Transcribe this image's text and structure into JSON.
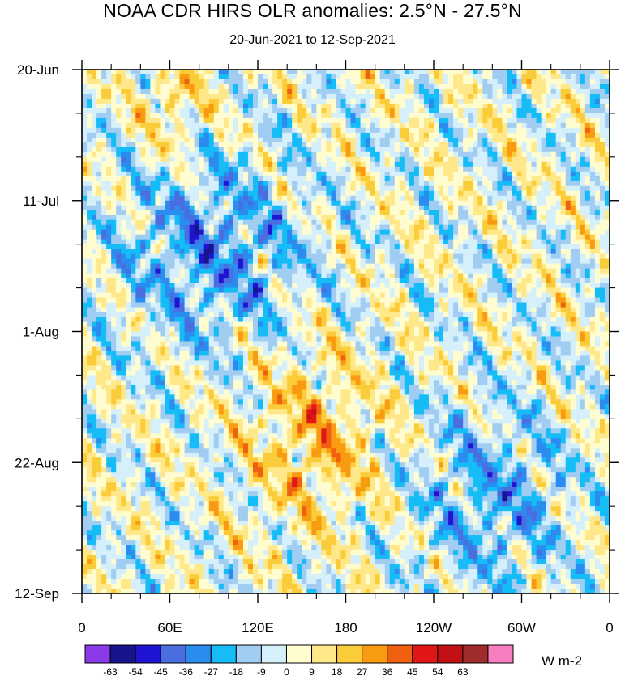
{
  "chart_data": {
    "type": "heatmap",
    "title": "NOAA CDR HIRS OLR anomalies: 2.5°N - 27.5°N",
    "subtitle": "20-Jun-2021 to 12-Sep-2021",
    "xlabel": "",
    "ylabel": "",
    "x_ticks": [
      "0",
      "60E",
      "120E",
      "180",
      "120W",
      "60W",
      "0"
    ],
    "x_range_deg_east": [
      0,
      360
    ],
    "y_ticks": [
      "20-Jun",
      "11-Jul",
      "1-Aug",
      "22-Aug",
      "12-Sep"
    ],
    "y_range": [
      "20-Jun-2021",
      "12-Sep-2021"
    ],
    "colorbar": {
      "units": "W m-2",
      "labels": [
        "-63",
        "-54",
        "-45",
        "-36",
        "-27",
        "-18",
        "-9",
        "0",
        "9",
        "18",
        "27",
        "36",
        "45",
        "54",
        "63"
      ],
      "colors": [
        "#8a3ae6",
        "#17148c",
        "#1f14d2",
        "#4a6ee0",
        "#2b8cf0",
        "#16bcf5",
        "#a2cdf2",
        "#d5f0fb",
        "#fffdd0",
        "#ffe88a",
        "#fbcc3a",
        "#f99b10",
        "#ef6010",
        "#e31616",
        "#c21014",
        "#a02c2c",
        "#f77fc0"
      ]
    },
    "features": [
      {
        "description": "positive anomaly band",
        "lon_range": [
          120,
          200
        ],
        "date_range": [
          "6-Aug",
          "30-Aug"
        ],
        "peak": 45
      },
      {
        "description": "negative anomaly cluster",
        "lon_range": [
          30,
          150
        ],
        "date_range": [
          "6-Jul",
          "1-Aug"
        ],
        "peak": -54
      },
      {
        "description": "positive anomaly",
        "lon_range": [
          45,
          80
        ],
        "date_range": [
          "20-Jun",
          "1-Jul"
        ],
        "peak": 36
      },
      {
        "description": "negative anomaly streaks",
        "lon_range": [
          230,
          330
        ],
        "date_range": [
          "15-Aug",
          "10-Sep"
        ],
        "peak": -45
      }
    ]
  }
}
